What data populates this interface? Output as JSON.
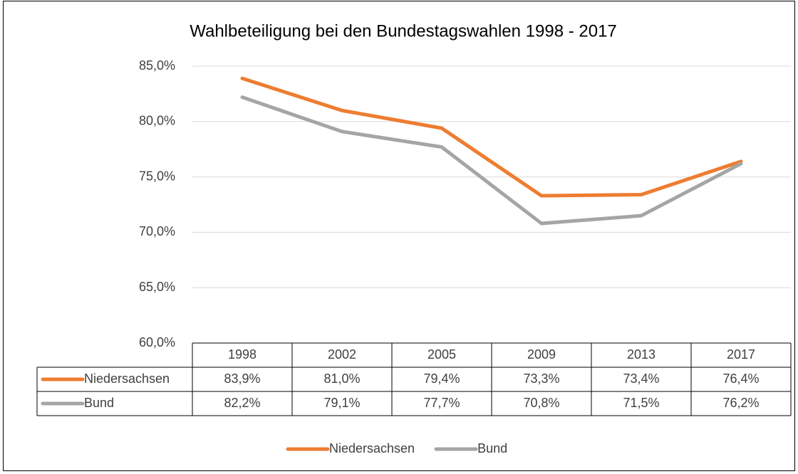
{
  "chart_data": {
    "type": "line",
    "title": "Wahlbeteiligung bei den Bundestagswahlen 1998 - 2017",
    "categories": [
      "1998",
      "2002",
      "2005",
      "2009",
      "2013",
      "2017"
    ],
    "series": [
      {
        "name": "Niedersachsen",
        "color": "#ED7D31",
        "values": [
          83.9,
          81.0,
          79.4,
          73.3,
          73.4,
          76.4
        ],
        "value_labels": [
          "83,9%",
          "81,0%",
          "79,4%",
          "73,3%",
          "73,4%",
          "76,4%"
        ]
      },
      {
        "name": "Bund",
        "color": "#A5A5A5",
        "values": [
          82.2,
          79.1,
          77.7,
          70.8,
          71.5,
          76.2
        ],
        "value_labels": [
          "82,2%",
          "79,1%",
          "77,7%",
          "70,8%",
          "71,5%",
          "76,2%"
        ]
      }
    ],
    "ylim": [
      60,
      85
    ],
    "yticks": [
      {
        "value": 60,
        "label": "60,0%"
      },
      {
        "value": 65,
        "label": "65,0%"
      },
      {
        "value": 70,
        "label": "70,0%"
      },
      {
        "value": 75,
        "label": "75,0%"
      },
      {
        "value": 80,
        "label": "80,0%"
      },
      {
        "value": 85,
        "label": "85,0%"
      }
    ],
    "grid": true
  }
}
